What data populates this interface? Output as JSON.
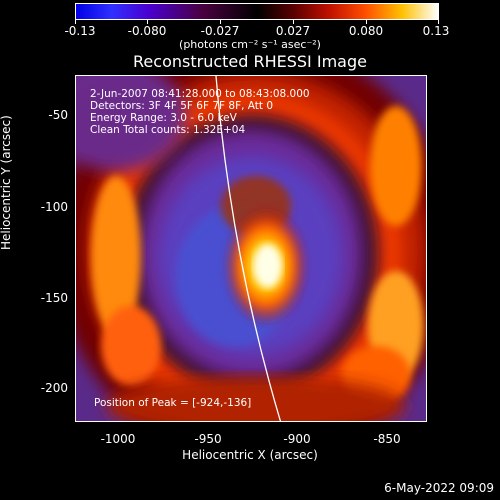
{
  "colorbar": {
    "tick_labels": [
      "-0.13",
      "-0.080",
      "-0.027",
      "0.027",
      "0.080",
      "0.13"
    ],
    "units": "(photons cm⁻² s⁻¹ asec⁻²)"
  },
  "image": {
    "title": "Reconstructed RHESSI Image",
    "time_range": "2-Jun-2007 08:41:28.000 to 08:43:08.000",
    "detectors": "Detectors: 3F 4F 5F 6F 7F 8F, Att 0",
    "energy_range": "Energy Range: 3.0 - 6.0 keV",
    "clean_counts": "Clean    Total counts: 1.32E+04",
    "peak_position": "Position of Peak = [-924,-136]"
  },
  "axes": {
    "xlabel": "Heliocentric X (arcsec)",
    "ylabel": "Heliocentric Y (arcsec)",
    "x_ticks": [
      "-1000",
      "-950",
      "-900",
      "-850"
    ],
    "y_ticks": [
      "-50",
      "-100",
      "-150",
      "-200"
    ],
    "x_range": [
      -1021,
      -826
    ],
    "y_range": [
      -219,
      -27
    ]
  },
  "footer": {
    "date": "6-May-2022 09:09"
  },
  "colors": {
    "background": "#000000",
    "text": "#ffffff"
  }
}
